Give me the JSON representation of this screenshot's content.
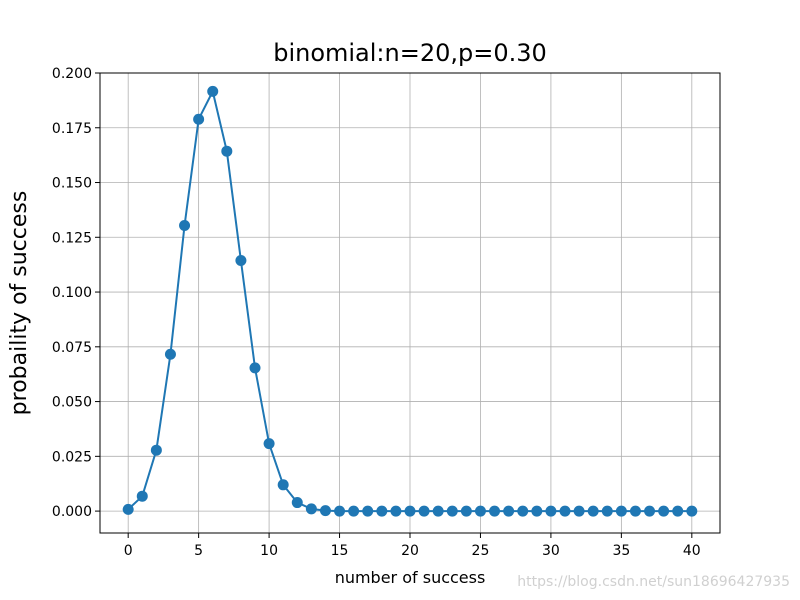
{
  "chart_data": {
    "type": "line",
    "title": "binomial:n=20,p=0.30",
    "xlabel": "number of success",
    "ylabel": "probaility of success",
    "xlim": [
      -2,
      42
    ],
    "ylim": [
      -0.01,
      0.2
    ],
    "xticks": [
      0,
      5,
      10,
      15,
      20,
      25,
      30,
      35,
      40
    ],
    "xtick_labels": [
      "0",
      "5",
      "10",
      "15",
      "20",
      "25",
      "30",
      "35",
      "40"
    ],
    "yticks": [
      0.0,
      0.025,
      0.05,
      0.075,
      0.1,
      0.125,
      0.15,
      0.175,
      0.2
    ],
    "ytick_labels": [
      "0.000",
      "0.025",
      "0.050",
      "0.075",
      "0.100",
      "0.125",
      "0.150",
      "0.175",
      "0.200"
    ],
    "grid": true,
    "color": "#1f77b4",
    "series": [
      {
        "x": [
          0,
          1,
          2,
          3,
          4,
          5,
          6,
          7,
          8,
          9,
          10,
          11,
          12,
          13,
          14,
          15,
          16,
          17,
          18,
          19,
          20,
          21,
          22,
          23,
          24,
          25,
          26,
          27,
          28,
          29,
          30,
          31,
          32,
          33,
          34,
          35,
          36,
          37,
          38,
          39,
          40
        ],
        "values": [
          0.0008,
          0.0068,
          0.0278,
          0.0716,
          0.1304,
          0.1789,
          0.1916,
          0.1643,
          0.1144,
          0.0654,
          0.0308,
          0.012,
          0.0039,
          0.001,
          0.0002,
          0.0,
          0.0,
          0.0,
          0.0,
          0.0,
          0.0,
          0.0,
          0.0,
          0.0,
          0.0,
          0.0,
          0.0,
          0.0,
          0.0,
          0.0,
          0.0,
          0.0,
          0.0,
          0.0,
          0.0,
          0.0,
          0.0,
          0.0,
          0.0,
          0.0,
          0.0
        ]
      }
    ]
  },
  "watermark": "https://blog.csdn.net/sun18696427935"
}
